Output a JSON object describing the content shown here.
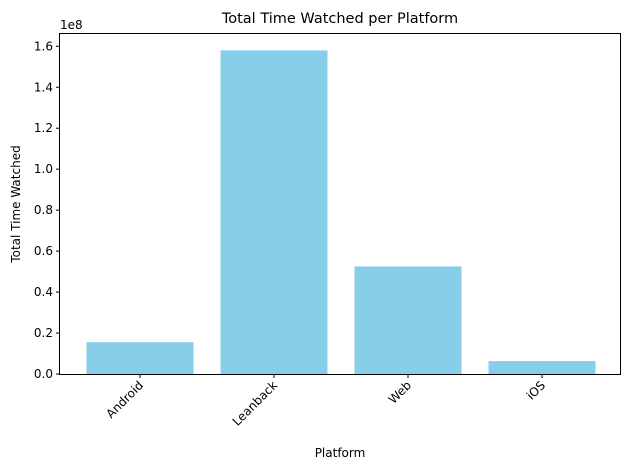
{
  "chart_data": {
    "type": "bar",
    "title": "Total Time Watched per Platform",
    "xlabel": "Platform",
    "ylabel": "Total Time Watched",
    "offset_label": "1e8",
    "categories": [
      "Android",
      "Leanback",
      "Web",
      "iOS"
    ],
    "values": [
      15500000,
      158000000,
      52500000,
      6300000
    ],
    "ylim": [
      0,
      166000000
    ],
    "yticks": [
      0,
      20000000,
      40000000,
      60000000,
      80000000,
      100000000,
      120000000,
      140000000,
      160000000
    ],
    "ytick_labels": [
      "0.0",
      "0.2",
      "0.4",
      "0.6",
      "0.8",
      "1.0",
      "1.2",
      "1.4",
      "1.6"
    ],
    "bar_color": "#87ceeb",
    "grid": false,
    "legend": "none",
    "xtick_rotation_deg": 45
  }
}
